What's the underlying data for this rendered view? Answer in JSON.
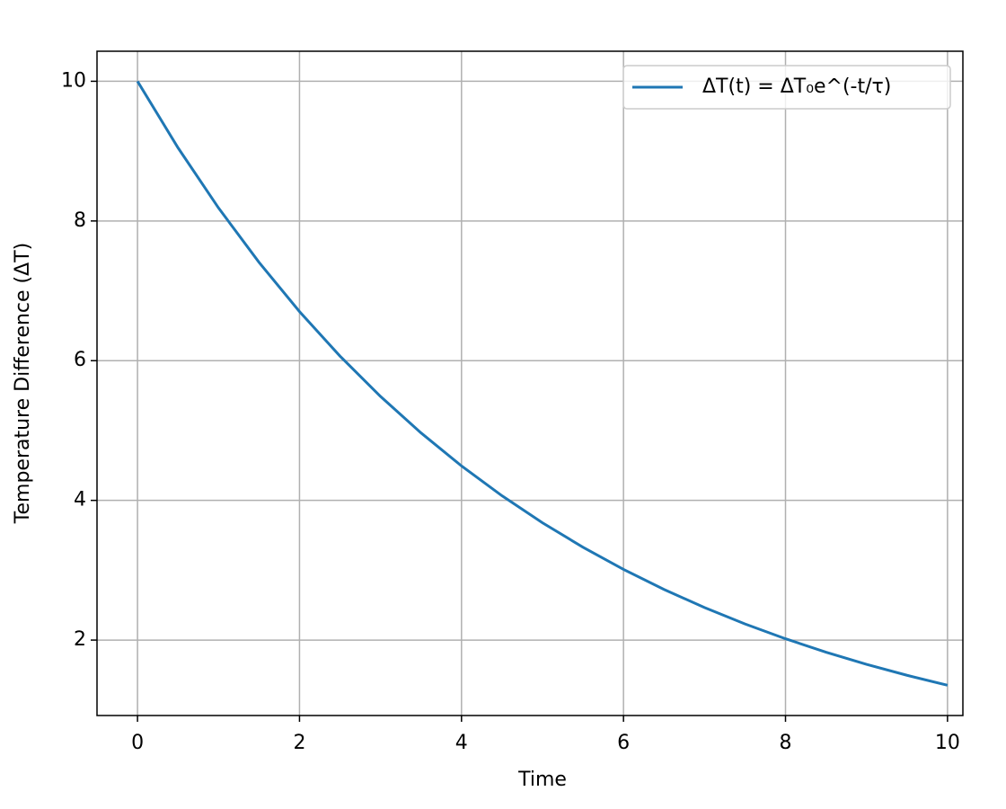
{
  "chart_data": {
    "type": "line",
    "x_label": "Time",
    "y_label": "Temperature Difference (ΔT)",
    "x": [
      0,
      0.5,
      1,
      1.5,
      2,
      2.5,
      3,
      3.5,
      4,
      4.5,
      5,
      5.5,
      6,
      6.5,
      7,
      7.5,
      8,
      8.5,
      9,
      9.5,
      10
    ],
    "series": [
      {
        "name": "ΔT(t) = ΔT₀e^(-t/τ)",
        "color": "#1f77b4",
        "values": [
          10,
          9.048,
          8.187,
          7.408,
          6.703,
          6.065,
          5.488,
          4.966,
          4.493,
          4.066,
          3.679,
          3.329,
          3.012,
          2.725,
          2.466,
          2.231,
          2.019,
          1.827,
          1.653,
          1.496,
          1.353
        ]
      }
    ],
    "xlim": [
      -0.5,
      10.19
    ],
    "ylim": [
      0.92,
      10.43
    ],
    "xticks": [
      0,
      2,
      4,
      6,
      8,
      10
    ],
    "yticks": [
      2,
      4,
      6,
      8,
      10
    ],
    "grid": true,
    "legend": "upper right"
  }
}
